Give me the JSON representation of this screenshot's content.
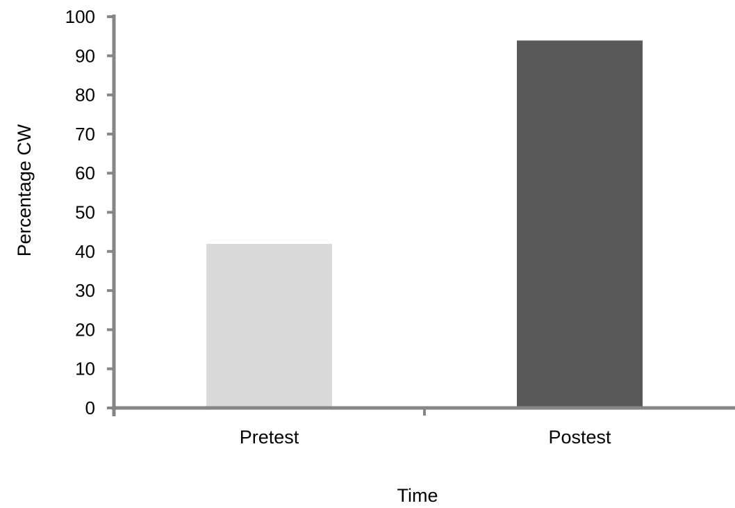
{
  "chart_data": {
    "type": "bar",
    "title": "",
    "xlabel": "Time",
    "ylabel": "Percentage CW",
    "categories": [
      "Pretest",
      "Postest"
    ],
    "values": [
      42,
      94
    ],
    "bar_colors": [
      "#d9d9d9",
      "#595959"
    ],
    "ylim": [
      0,
      100
    ],
    "yticks": [
      "0",
      "10",
      "20",
      "30",
      "40",
      "50",
      "60",
      "70",
      "80",
      "90",
      "100"
    ],
    "grid": false,
    "legend": "none",
    "axis_color": "#868686"
  }
}
